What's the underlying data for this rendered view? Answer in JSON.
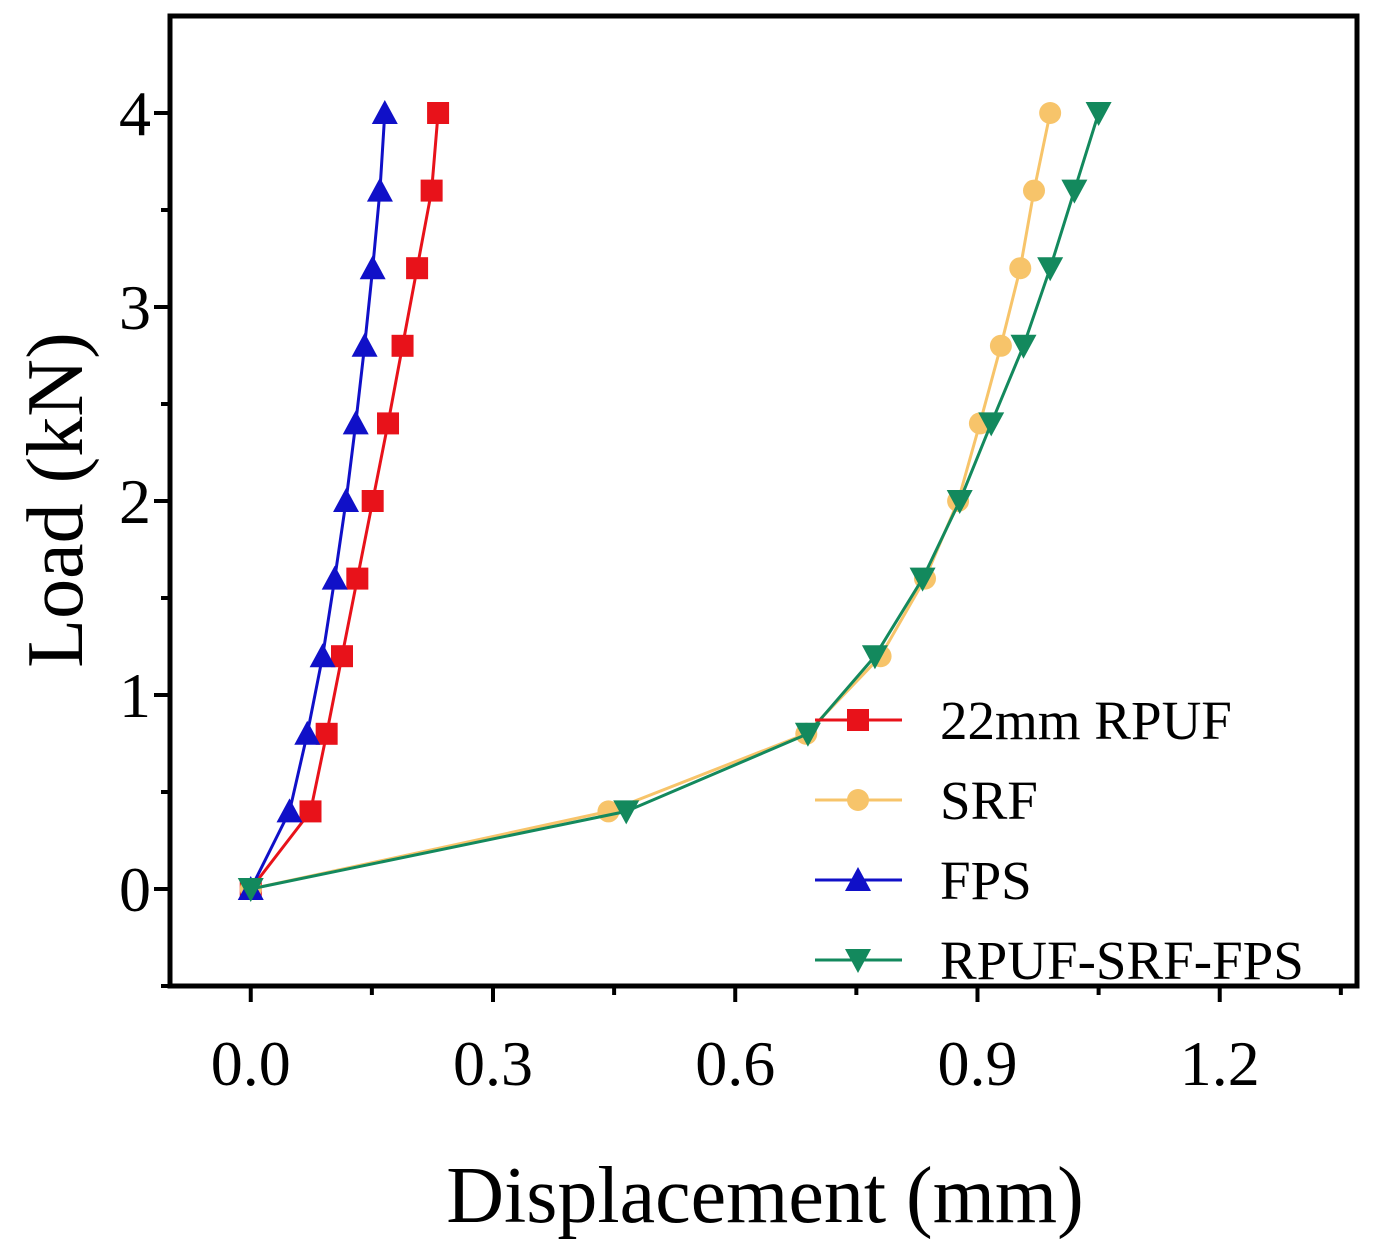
{
  "chart_data": {
    "type": "line",
    "title": "",
    "xlabel": "Displacement (mm)",
    "ylabel": "Load (kN)",
    "xlim": [
      -0.1,
      1.37
    ],
    "ylim": [
      -0.5,
      4.5
    ],
    "xticks": [
      0.0,
      0.3,
      0.6,
      0.9,
      1.2
    ],
    "xtick_labels": [
      "0.0",
      "0.3",
      "0.6",
      "0.9",
      "1.2"
    ],
    "yticks": [
      0,
      1,
      2,
      3,
      4
    ],
    "ytick_labels": [
      "0",
      "1",
      "2",
      "3",
      "4"
    ],
    "grid": false,
    "legend_position": "bottom-right",
    "series": [
      {
        "name": "22mm RPUF",
        "color": "#e8121a",
        "marker": "square",
        "x": [
          0.0,
          0.074,
          0.094,
          0.113,
          0.132,
          0.151,
          0.17,
          0.188,
          0.206,
          0.224,
          0.232
        ],
        "y": [
          0.0,
          0.4,
          0.8,
          1.2,
          1.6,
          2.0,
          2.4,
          2.8,
          3.2,
          3.6,
          4.0
        ]
      },
      {
        "name": "SRF",
        "color": "#f7c46a",
        "marker": "circle",
        "x": [
          0.0,
          0.443,
          0.688,
          0.78,
          0.835,
          0.876,
          0.903,
          0.929,
          0.953,
          0.97,
          0.99
        ],
        "y": [
          0.0,
          0.4,
          0.8,
          1.2,
          1.6,
          2.0,
          2.4,
          2.8,
          3.2,
          3.6,
          4.0
        ]
      },
      {
        "name": "FPS",
        "color": "#1010c8",
        "marker": "triangle-up",
        "x": [
          0.0,
          0.048,
          0.07,
          0.089,
          0.104,
          0.118,
          0.13,
          0.141,
          0.151,
          0.16,
          0.166
        ],
        "y": [
          0.0,
          0.4,
          0.8,
          1.2,
          1.6,
          2.0,
          2.4,
          2.8,
          3.2,
          3.6,
          4.0
        ]
      },
      {
        "name": "RPUF-SRF-FPS",
        "color": "#13895d",
        "marker": "triangle-down",
        "x": [
          0.0,
          0.465,
          0.69,
          0.773,
          0.832,
          0.878,
          0.917,
          0.957,
          0.99,
          1.02,
          1.05
        ],
        "y": [
          0.0,
          0.4,
          0.8,
          1.2,
          1.6,
          2.0,
          2.4,
          2.8,
          3.2,
          3.6,
          4.0
        ]
      }
    ]
  }
}
